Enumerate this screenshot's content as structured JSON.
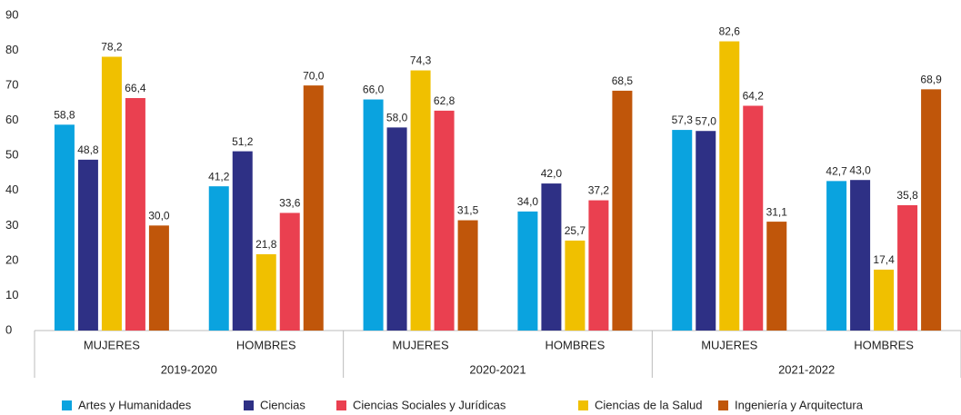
{
  "chart_data": {
    "type": "bar",
    "categories": [
      "MUJERES",
      "HOMBRES",
      "MUJERES",
      "HOMBRES",
      "MUJERES",
      "HOMBRES"
    ],
    "groups": [
      "2019-2020",
      "2020-2021",
      "2021-2022"
    ],
    "series": [
      {
        "name": "Artes y Humanidades",
        "color": "#0aa3df",
        "values": [
          58.8,
          41.2,
          66.0,
          34.0,
          57.3,
          42.7
        ],
        "value_labels": [
          "58,8",
          "41,2",
          "66,0",
          "34,0",
          "57,3",
          "42,7"
        ]
      },
      {
        "name": "Ciencias",
        "color": "#2e3085",
        "values": [
          48.8,
          51.2,
          58.0,
          42.0,
          57.0,
          43.0
        ],
        "value_labels": [
          "48,8",
          "51,2",
          "58,0",
          "42,0",
          "57,0",
          "43,0"
        ]
      },
      {
        "name": "Ciencias Sociales y Jurídicas",
        "color": "#ea4050",
        "values": [
          66.4,
          33.6,
          62.8,
          37.2,
          64.2,
          35.8
        ],
        "value_labels": [
          "66,4",
          "33,6",
          "62,8",
          "37,2",
          "64,2",
          "35,8"
        ]
      },
      {
        "name": "Ciencias de la Salud",
        "color": "#f0c000",
        "values": [
          78.2,
          21.8,
          74.3,
          25.7,
          82.6,
          17.4
        ],
        "value_labels": [
          "78,2",
          "21,8",
          "74,3",
          "25,7",
          "82,6",
          "17,4"
        ]
      },
      {
        "name": "Ingeniería y Arquitectura",
        "color": "#c0560a",
        "values": [
          30.0,
          70.0,
          31.5,
          68.5,
          31.1,
          68.9
        ],
        "value_labels": [
          "30,0",
          "70,0",
          "31,5",
          "68,5",
          "31,1",
          "68,9"
        ]
      }
    ],
    "ylim": [
      0,
      90
    ],
    "yticks": [
      0,
      10,
      20,
      30,
      40,
      50,
      60,
      70,
      80,
      90
    ],
    "grid": false,
    "legend": "bottom"
  }
}
